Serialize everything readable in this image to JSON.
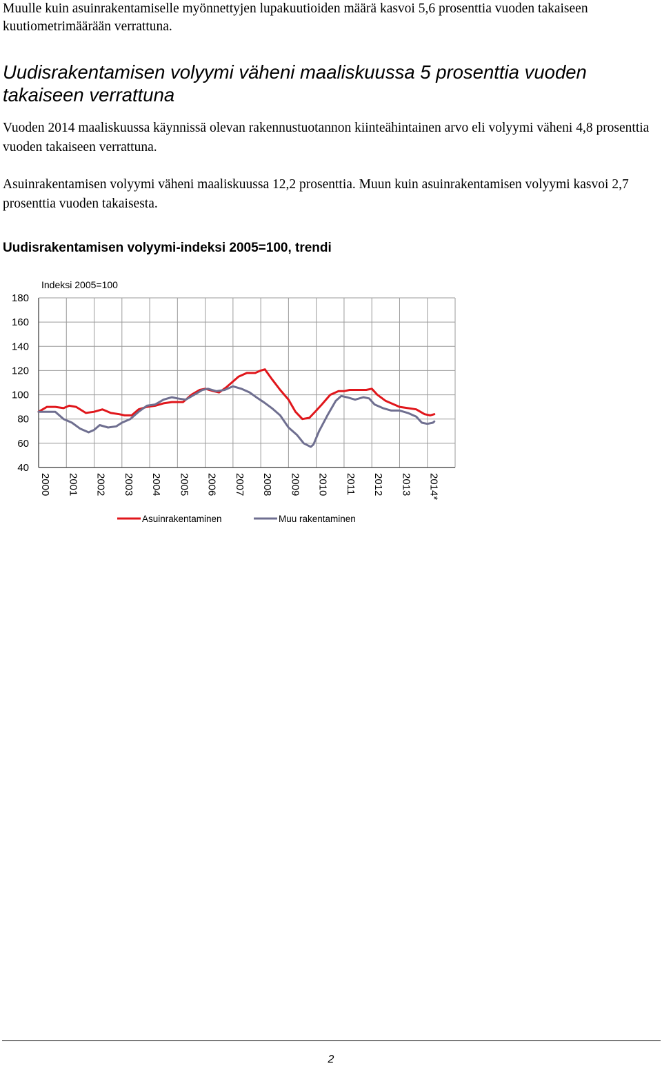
{
  "intro_text": "Muulle kuin asuinrakentamiselle myönnettyjen lupakuutioiden määrä kasvoi 5,6 prosenttia vuoden takaiseen kuutiometrimäärään verrattuna.",
  "heading": "Uudisrakentamisen volyymi väheni maaliskuussa 5 prosenttia vuoden takaiseen verrattuna",
  "paragraph1": "Vuoden 2014 maaliskuussa käynnissä olevan rakennustuotannon kiinteähintainen arvo eli volyymi väheni 4,8 prosenttia vuoden takaiseen verrattuna.",
  "paragraph2": "Asuinrakentamisen volyymi väheni maaliskuussa 12,2 prosenttia. Muun kuin asuinrakentamisen volyymi kasvoi 2,7 prosenttia vuoden takaisesta.",
  "chart_title": "Uudisrakentamisen volyymi-indeksi 2005=100, trendi",
  "page_number": "2",
  "chart_data": {
    "type": "line",
    "title": "",
    "ylabel": "Indeksi 2005=100",
    "xlabel": "",
    "ylim": [
      40,
      180
    ],
    "yticks": [
      180,
      160,
      140,
      120,
      100,
      80,
      60,
      40
    ],
    "xlim": [
      2000,
      2015
    ],
    "xticks": [
      "2000",
      "2001",
      "2002",
      "2003",
      "2004",
      "2005",
      "2006",
      "2007",
      "2008",
      "2009",
      "2010",
      "2011",
      "2012",
      "2013",
      "2014*"
    ],
    "grid": true,
    "legend_position": "bottom",
    "series": [
      {
        "name": "Asuinrakentaminen",
        "color": "#e0161b",
        "points": [
          [
            2000.0,
            86
          ],
          [
            2000.3,
            90
          ],
          [
            2000.6,
            90
          ],
          [
            2000.9,
            89
          ],
          [
            2001.1,
            91
          ],
          [
            2001.35,
            90
          ],
          [
            2001.7,
            85
          ],
          [
            2002.0,
            86
          ],
          [
            2002.3,
            88
          ],
          [
            2002.6,
            85
          ],
          [
            2002.9,
            84
          ],
          [
            2003.1,
            83
          ],
          [
            2003.35,
            83
          ],
          [
            2003.6,
            88
          ],
          [
            2003.9,
            90
          ],
          [
            2004.2,
            91
          ],
          [
            2004.5,
            93
          ],
          [
            2004.8,
            94
          ],
          [
            2005.2,
            94
          ],
          [
            2005.5,
            100
          ],
          [
            2005.8,
            104
          ],
          [
            2006.0,
            105
          ],
          [
            2006.3,
            103
          ],
          [
            2006.5,
            102
          ],
          [
            2006.75,
            106
          ],
          [
            2007.0,
            111
          ],
          [
            2007.2,
            115
          ],
          [
            2007.5,
            118
          ],
          [
            2007.8,
            118
          ],
          [
            2008.0,
            120
          ],
          [
            2008.15,
            121
          ],
          [
            2008.4,
            113
          ],
          [
            2008.7,
            104
          ],
          [
            2009.0,
            96
          ],
          [
            2009.25,
            86
          ],
          [
            2009.5,
            80
          ],
          [
            2009.75,
            81
          ],
          [
            2010.0,
            87
          ],
          [
            2010.2,
            92
          ],
          [
            2010.5,
            100
          ],
          [
            2010.8,
            103
          ],
          [
            2011.0,
            103
          ],
          [
            2011.2,
            104
          ],
          [
            2011.5,
            104
          ],
          [
            2011.8,
            104
          ],
          [
            2012.0,
            105
          ],
          [
            2012.2,
            100
          ],
          [
            2012.5,
            95
          ],
          [
            2012.8,
            92
          ],
          [
            2013.0,
            90
          ],
          [
            2013.3,
            89
          ],
          [
            2013.6,
            88
          ],
          [
            2013.9,
            84
          ],
          [
            2014.1,
            83
          ],
          [
            2014.25,
            84
          ]
        ]
      },
      {
        "name": "Muu rakentaminen",
        "color": "#6f6f90",
        "points": [
          [
            2000.0,
            86
          ],
          [
            2000.3,
            86
          ],
          [
            2000.6,
            86
          ],
          [
            2000.9,
            80
          ],
          [
            2001.2,
            77
          ],
          [
            2001.5,
            72
          ],
          [
            2001.8,
            69
          ],
          [
            2002.0,
            71
          ],
          [
            2002.2,
            75
          ],
          [
            2002.5,
            73
          ],
          [
            2002.8,
            74
          ],
          [
            2003.0,
            77
          ],
          [
            2003.3,
            80
          ],
          [
            2003.6,
            86
          ],
          [
            2003.9,
            91
          ],
          [
            2004.2,
            92
          ],
          [
            2004.5,
            96
          ],
          [
            2004.8,
            98
          ],
          [
            2005.0,
            97
          ],
          [
            2005.3,
            96
          ],
          [
            2005.6,
            100
          ],
          [
            2005.9,
            104
          ],
          [
            2006.1,
            105
          ],
          [
            2006.4,
            103
          ],
          [
            2006.7,
            104
          ],
          [
            2007.0,
            107
          ],
          [
            2007.3,
            105
          ],
          [
            2007.6,
            102
          ],
          [
            2007.9,
            97
          ],
          [
            2008.1,
            94
          ],
          [
            2008.4,
            89
          ],
          [
            2008.7,
            83
          ],
          [
            2009.0,
            73
          ],
          [
            2009.3,
            67
          ],
          [
            2009.55,
            60
          ],
          [
            2009.8,
            57
          ],
          [
            2009.9,
            59
          ],
          [
            2010.1,
            70
          ],
          [
            2010.4,
            83
          ],
          [
            2010.7,
            95
          ],
          [
            2010.9,
            99
          ],
          [
            2011.1,
            98
          ],
          [
            2011.4,
            96
          ],
          [
            2011.7,
            98
          ],
          [
            2011.9,
            97
          ],
          [
            2012.1,
            92
          ],
          [
            2012.4,
            89
          ],
          [
            2012.7,
            87
          ],
          [
            2013.0,
            87
          ],
          [
            2013.3,
            85
          ],
          [
            2013.6,
            82
          ],
          [
            2013.8,
            77
          ],
          [
            2014.0,
            76
          ],
          [
            2014.2,
            77
          ],
          [
            2014.25,
            78
          ]
        ]
      }
    ]
  }
}
